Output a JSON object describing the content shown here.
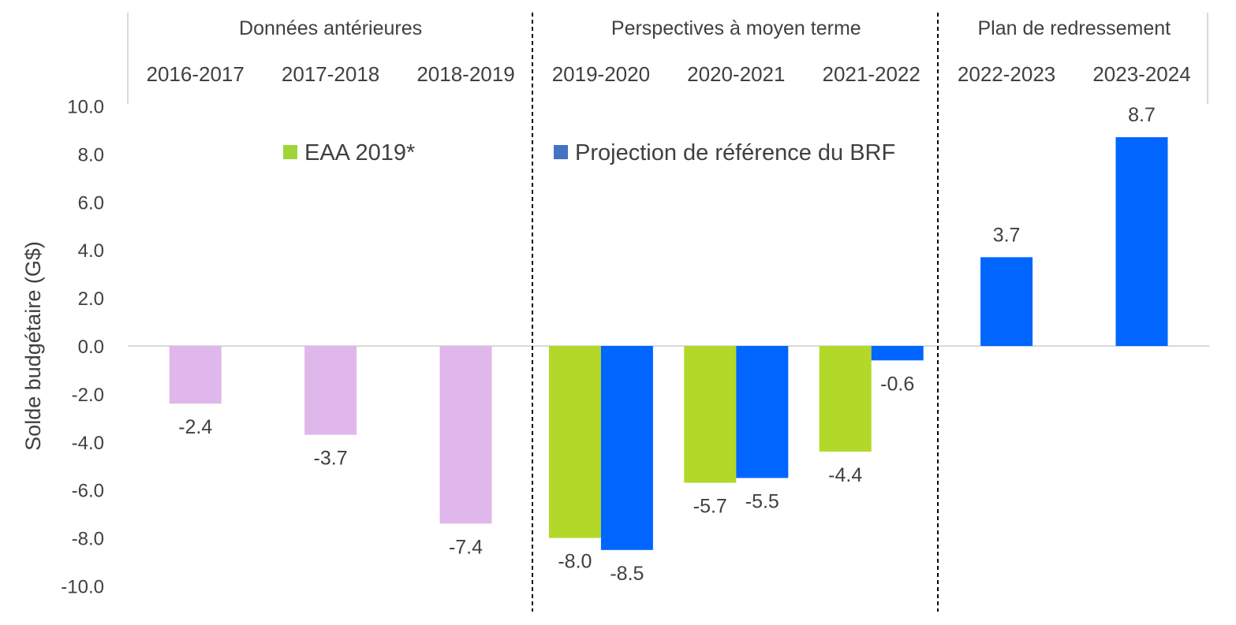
{
  "chart_data": {
    "type": "bar",
    "ylabel": "Solde budgétaire (G$)",
    "ylim": [
      -10,
      10
    ],
    "y_ticks": [
      "10.0",
      "8.0",
      "6.0",
      "4.0",
      "2.0",
      "0.0",
      "-2.0",
      "-4.0",
      "-6.0",
      "-8.0",
      "-10.0"
    ],
    "y_tick_values": [
      10,
      8,
      6,
      4,
      2,
      0,
      -2,
      -4,
      -6,
      -8,
      -10
    ],
    "categories": [
      "2016-2017",
      "2017-2018",
      "2018-2019",
      "2019-2020",
      "2020-2021",
      "2021-2022",
      "2022-2023",
      "2023-2024"
    ],
    "sections": [
      {
        "label": "Données antérieures",
        "categories": [
          "2016-2017",
          "2017-2018",
          "2018-2019"
        ]
      },
      {
        "label": "Perspectives à moyen terme",
        "categories": [
          "2019-2020",
          "2020-2021",
          "2021-2022"
        ]
      },
      {
        "label": "Plan de redressement",
        "categories": [
          "2022-2023",
          "2023-2024"
        ]
      }
    ],
    "series": [
      {
        "key": "historical",
        "color": "#e0b7ea",
        "values": [
          -2.4,
          -3.7,
          -7.4,
          null,
          null,
          null,
          null,
          null
        ],
        "labels": [
          "-2.4",
          "-3.7",
          "-7.4",
          "",
          "",
          "",
          "",
          ""
        ]
      },
      {
        "key": "eaa",
        "name": "EAA 2019*",
        "color": "#b2d829",
        "values": [
          null,
          null,
          null,
          -8.0,
          -5.7,
          -4.4,
          null,
          null
        ],
        "labels": [
          "",
          "",
          "",
          "-8.0",
          "-5.7",
          "-4.4",
          "",
          ""
        ]
      },
      {
        "key": "brf",
        "name": "Projection de référence du BRF",
        "color": "#0066ff",
        "values": [
          null,
          null,
          null,
          -8.5,
          -5.5,
          -0.6,
          3.7,
          8.7
        ],
        "labels": [
          "",
          "",
          "",
          "-8.5",
          "-5.5",
          "-0.6",
          "3.7",
          "8.7"
        ]
      }
    ],
    "legend": [
      {
        "label": "EAA 2019*",
        "color": "#9fd53a"
      },
      {
        "label": "Projection de référence du BRF",
        "color": "#4472c4"
      }
    ],
    "colors": {
      "axis_text": "#404040",
      "zero_line": "#d9d9d9",
      "divider": "#000000"
    },
    "legend_placement": "top-center",
    "grid": false
  }
}
